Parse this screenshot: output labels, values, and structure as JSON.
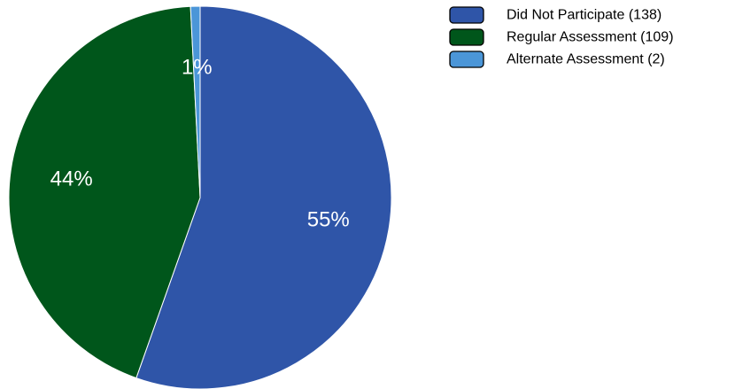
{
  "chart_data": {
    "type": "pie",
    "slices": [
      {
        "label": "Did Not Participate (138)",
        "value": 138,
        "percent_label": "55%",
        "color": "#2F55A8"
      },
      {
        "label": "Regular Assessment (109)",
        "value": 109,
        "percent_label": "44%",
        "color": "#00561B"
      },
      {
        "label": "Alternate Assessment (2)",
        "value": 2,
        "percent_label": "1%",
        "color": "#4B96D8"
      }
    ],
    "start_angle_deg": 0,
    "direction": "clockwise",
    "legend_position": "top-right"
  }
}
